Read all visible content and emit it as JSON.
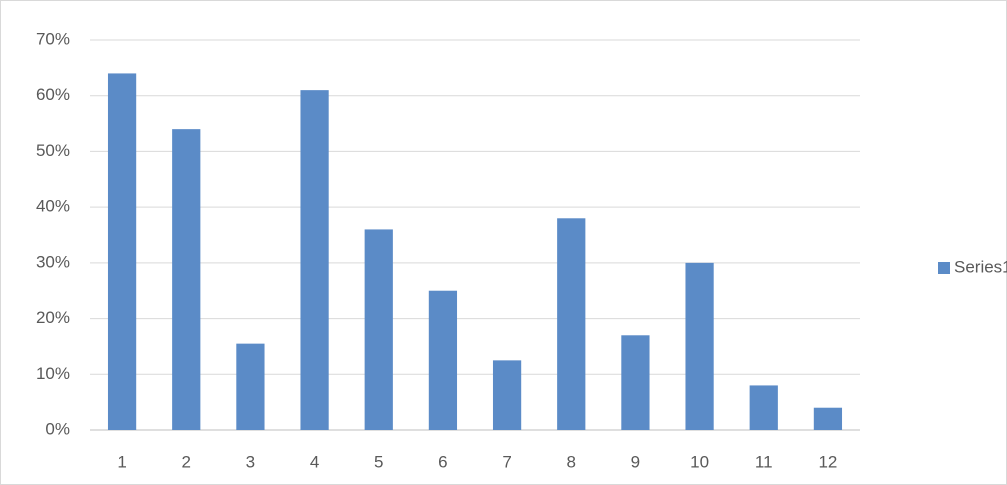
{
  "chart_data": {
    "type": "bar",
    "categories": [
      "1",
      "2",
      "3",
      "4",
      "5",
      "6",
      "7",
      "8",
      "9",
      "10",
      "11",
      "12"
    ],
    "series": [
      {
        "name": "Series1",
        "color": "#5b8bc7",
        "values": [
          64,
          54,
          15.5,
          61,
          36,
          25,
          12.5,
          38,
          17,
          30,
          8,
          4
        ]
      }
    ],
    "ylim": [
      0,
      70
    ],
    "yticks": [
      {
        "value": 0,
        "label": "0%"
      },
      {
        "value": 10,
        "label": "10%"
      },
      {
        "value": 20,
        "label": "20%"
      },
      {
        "value": 30,
        "label": "30%"
      },
      {
        "value": 40,
        "label": "40%"
      },
      {
        "value": 50,
        "label": "50%"
      },
      {
        "value": 60,
        "label": "60%"
      },
      {
        "value": 70,
        "label": "70%"
      }
    ],
    "grid": true,
    "legend": "right"
  }
}
